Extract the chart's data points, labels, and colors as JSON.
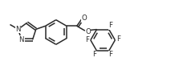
{
  "bg_color": "#ffffff",
  "line_color": "#2a2a2a",
  "line_width": 1.1,
  "font_size": 6.2,
  "figsize": [
    2.18,
    0.82
  ],
  "dpi": 100,
  "xlim": [
    0.0,
    10.0
  ],
  "ylim": [
    0.0,
    3.8
  ]
}
